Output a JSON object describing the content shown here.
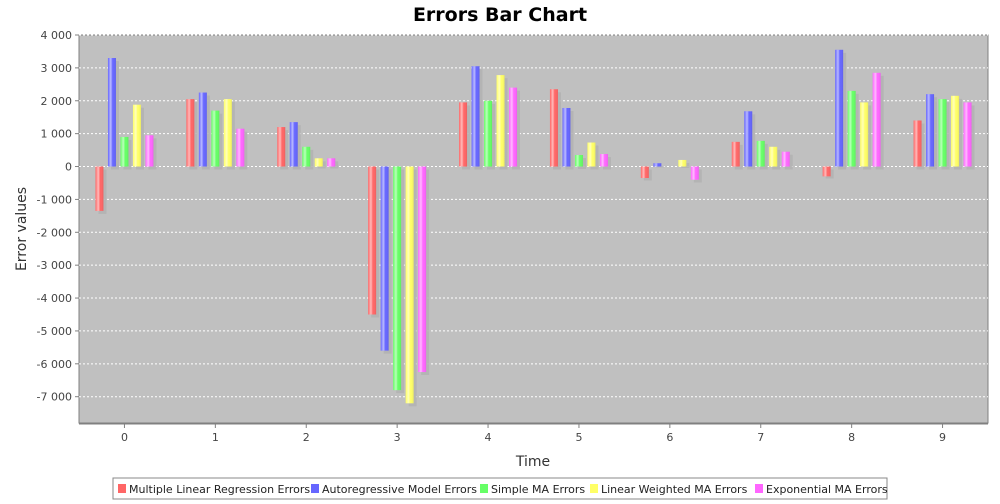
{
  "chart_data": {
    "type": "bar",
    "title": "Errors Bar Chart",
    "xlabel": "Time",
    "ylabel": "Error values",
    "categories": [
      "0",
      "1",
      "2",
      "3",
      "4",
      "5",
      "6",
      "7",
      "8",
      "9"
    ],
    "ylim": [
      -7800,
      4000
    ],
    "yticks": [
      4000,
      3000,
      2000,
      1000,
      0,
      -1000,
      -2000,
      -3000,
      -4000,
      -5000,
      -6000,
      -7000
    ],
    "ytick_labels": [
      "4 000",
      "3 000",
      "2 000",
      "1 000",
      "0",
      "-1 000",
      "-2 000",
      "-3 000",
      "-4 000",
      "-5 000",
      "-6 000",
      "-7 000"
    ],
    "grid": true,
    "legend_position": "bottom",
    "series": [
      {
        "name": "Multiple Linear Regression Errors",
        "color": "#ff6666",
        "values": [
          -1350,
          2050,
          1200,
          -4500,
          1950,
          2350,
          -350,
          750,
          -300,
          1400
        ]
      },
      {
        "name": "Autoregressive Model Errors",
        "color": "#6666ff",
        "values": [
          3300,
          2250,
          1350,
          -5600,
          3050,
          1780,
          100,
          1680,
          3550,
          2200
        ]
      },
      {
        "name": "Simple MA Errors",
        "color": "#66ff66",
        "values": [
          900,
          1700,
          600,
          -6800,
          2000,
          350,
          0,
          780,
          2300,
          2050
        ]
      },
      {
        "name": "Linear Weighted MA Errors",
        "color": "#ffff66",
        "values": [
          1880,
          2050,
          250,
          -7200,
          2780,
          730,
          200,
          600,
          1950,
          2150
        ]
      },
      {
        "name": "Exponential MA Errors",
        "color": "#ff66ff",
        "values": [
          950,
          1150,
          250,
          -6250,
          2400,
          380,
          -400,
          450,
          2850,
          1950
        ]
      }
    ]
  }
}
